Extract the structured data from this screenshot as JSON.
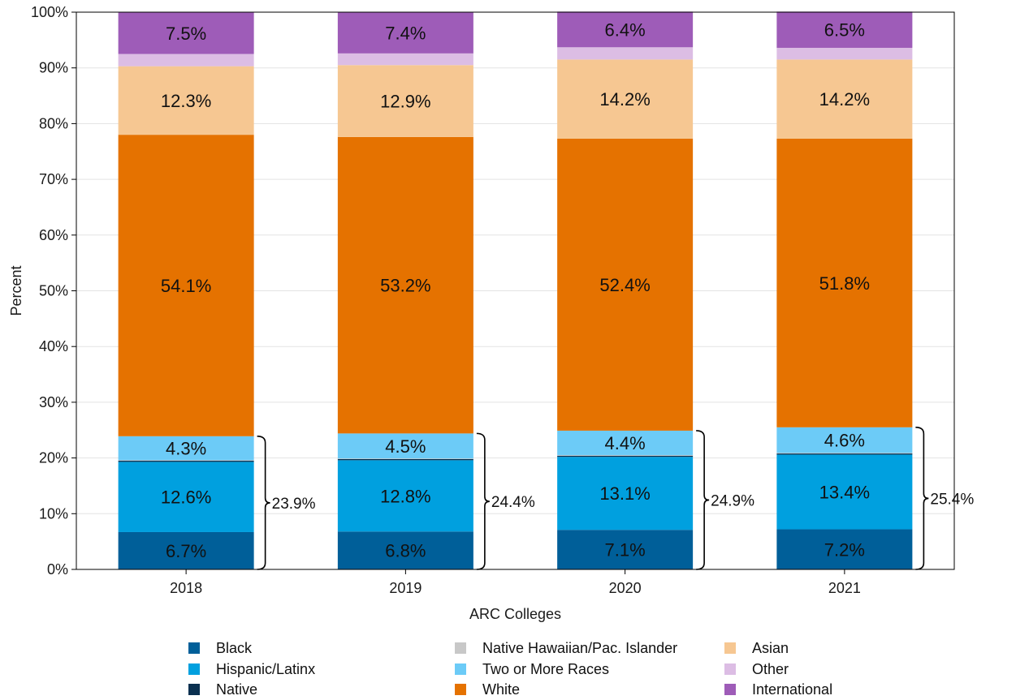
{
  "chart_data": {
    "type": "bar",
    "stacked": true,
    "title": "",
    "xlabel": "ARC Colleges",
    "ylabel": "Percent",
    "ylim": [
      0,
      100
    ],
    "yticks": [
      "0%",
      "10%",
      "20%",
      "30%",
      "40%",
      "50%",
      "60%",
      "70%",
      "80%",
      "90%",
      "100%"
    ],
    "grid": true,
    "legend_position": "bottom",
    "categories": [
      "2018",
      "2019",
      "2020",
      "2021"
    ],
    "series": [
      {
        "name": "Black",
        "color": "#005f99",
        "values": [
          6.7,
          6.8,
          7.1,
          7.2
        ],
        "labels": [
          "6.7%",
          "6.8%",
          "7.1%",
          "7.2%"
        ]
      },
      {
        "name": "Hispanic/Latinx",
        "color": "#00a0df",
        "values": [
          12.6,
          12.8,
          13.1,
          13.4
        ],
        "labels": [
          "12.6%",
          "12.8%",
          "13.1%",
          "13.4%"
        ]
      },
      {
        "name": "Native",
        "color": "#0a3050",
        "values": [
          0.2,
          0.2,
          0.2,
          0.2
        ],
        "labels": [
          "",
          "",
          "",
          ""
        ]
      },
      {
        "name": "Native Hawaiian/Pac. Islander",
        "color": "#c8c8c8",
        "values": [
          0.1,
          0.1,
          0.1,
          0.1
        ],
        "labels": [
          "",
          "",
          "",
          ""
        ]
      },
      {
        "name": "Two or More Races",
        "color": "#6ccbf7",
        "values": [
          4.3,
          4.5,
          4.4,
          4.6
        ],
        "labels": [
          "4.3%",
          "4.5%",
          "4.4%",
          "4.6%"
        ]
      },
      {
        "name": "White",
        "color": "#e57200",
        "values": [
          54.1,
          53.2,
          52.4,
          51.8
        ],
        "labels": [
          "54.1%",
          "53.2%",
          "52.4%",
          "51.8%"
        ]
      },
      {
        "name": "Asian",
        "color": "#f6c792",
        "values": [
          12.3,
          12.9,
          14.2,
          14.2
        ],
        "labels": [
          "12.3%",
          "12.9%",
          "14.2%",
          "14.2%"
        ]
      },
      {
        "name": "Other",
        "color": "#dcbde4",
        "values": [
          2.2,
          2.1,
          2.2,
          2.1
        ],
        "labels": [
          "",
          "",
          "",
          ""
        ]
      },
      {
        "name": "International",
        "color": "#9e5cb8",
        "values": [
          7.5,
          7.4,
          6.4,
          6.5
        ],
        "labels": [
          "7.5%",
          "7.4%",
          "6.4%",
          "6.5%"
        ]
      }
    ],
    "brackets": {
      "series_span": [
        "Black",
        "Two or More Races"
      ],
      "labels": [
        "23.9%",
        "24.4%",
        "24.9%",
        "25.4%"
      ]
    }
  }
}
